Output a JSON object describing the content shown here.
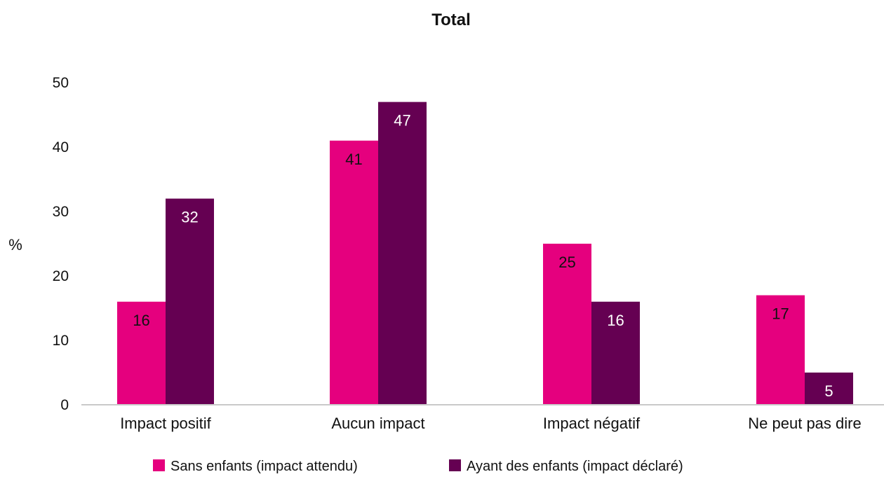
{
  "chart_data": {
    "type": "bar",
    "title": "Total",
    "ylabel": "%",
    "xlabel": "",
    "ylim": [
      0,
      50
    ],
    "yticks": [
      0,
      10,
      20,
      30,
      40,
      50
    ],
    "grid": false,
    "legend_position": "bottom",
    "categories": [
      "Impact positif",
      "Aucun impact",
      "Impact négatif",
      "Ne peut pas dire"
    ],
    "series": [
      {
        "name": "Sans enfants (impact attendu)",
        "color": "#e5007e",
        "label_color": "#111111",
        "values": [
          16,
          41,
          25,
          17
        ]
      },
      {
        "name": "Ayant des enfants (impact déclaré)",
        "color": "#650052",
        "label_color": "#ffffff",
        "values": [
          32,
          47,
          16,
          5
        ]
      }
    ]
  }
}
